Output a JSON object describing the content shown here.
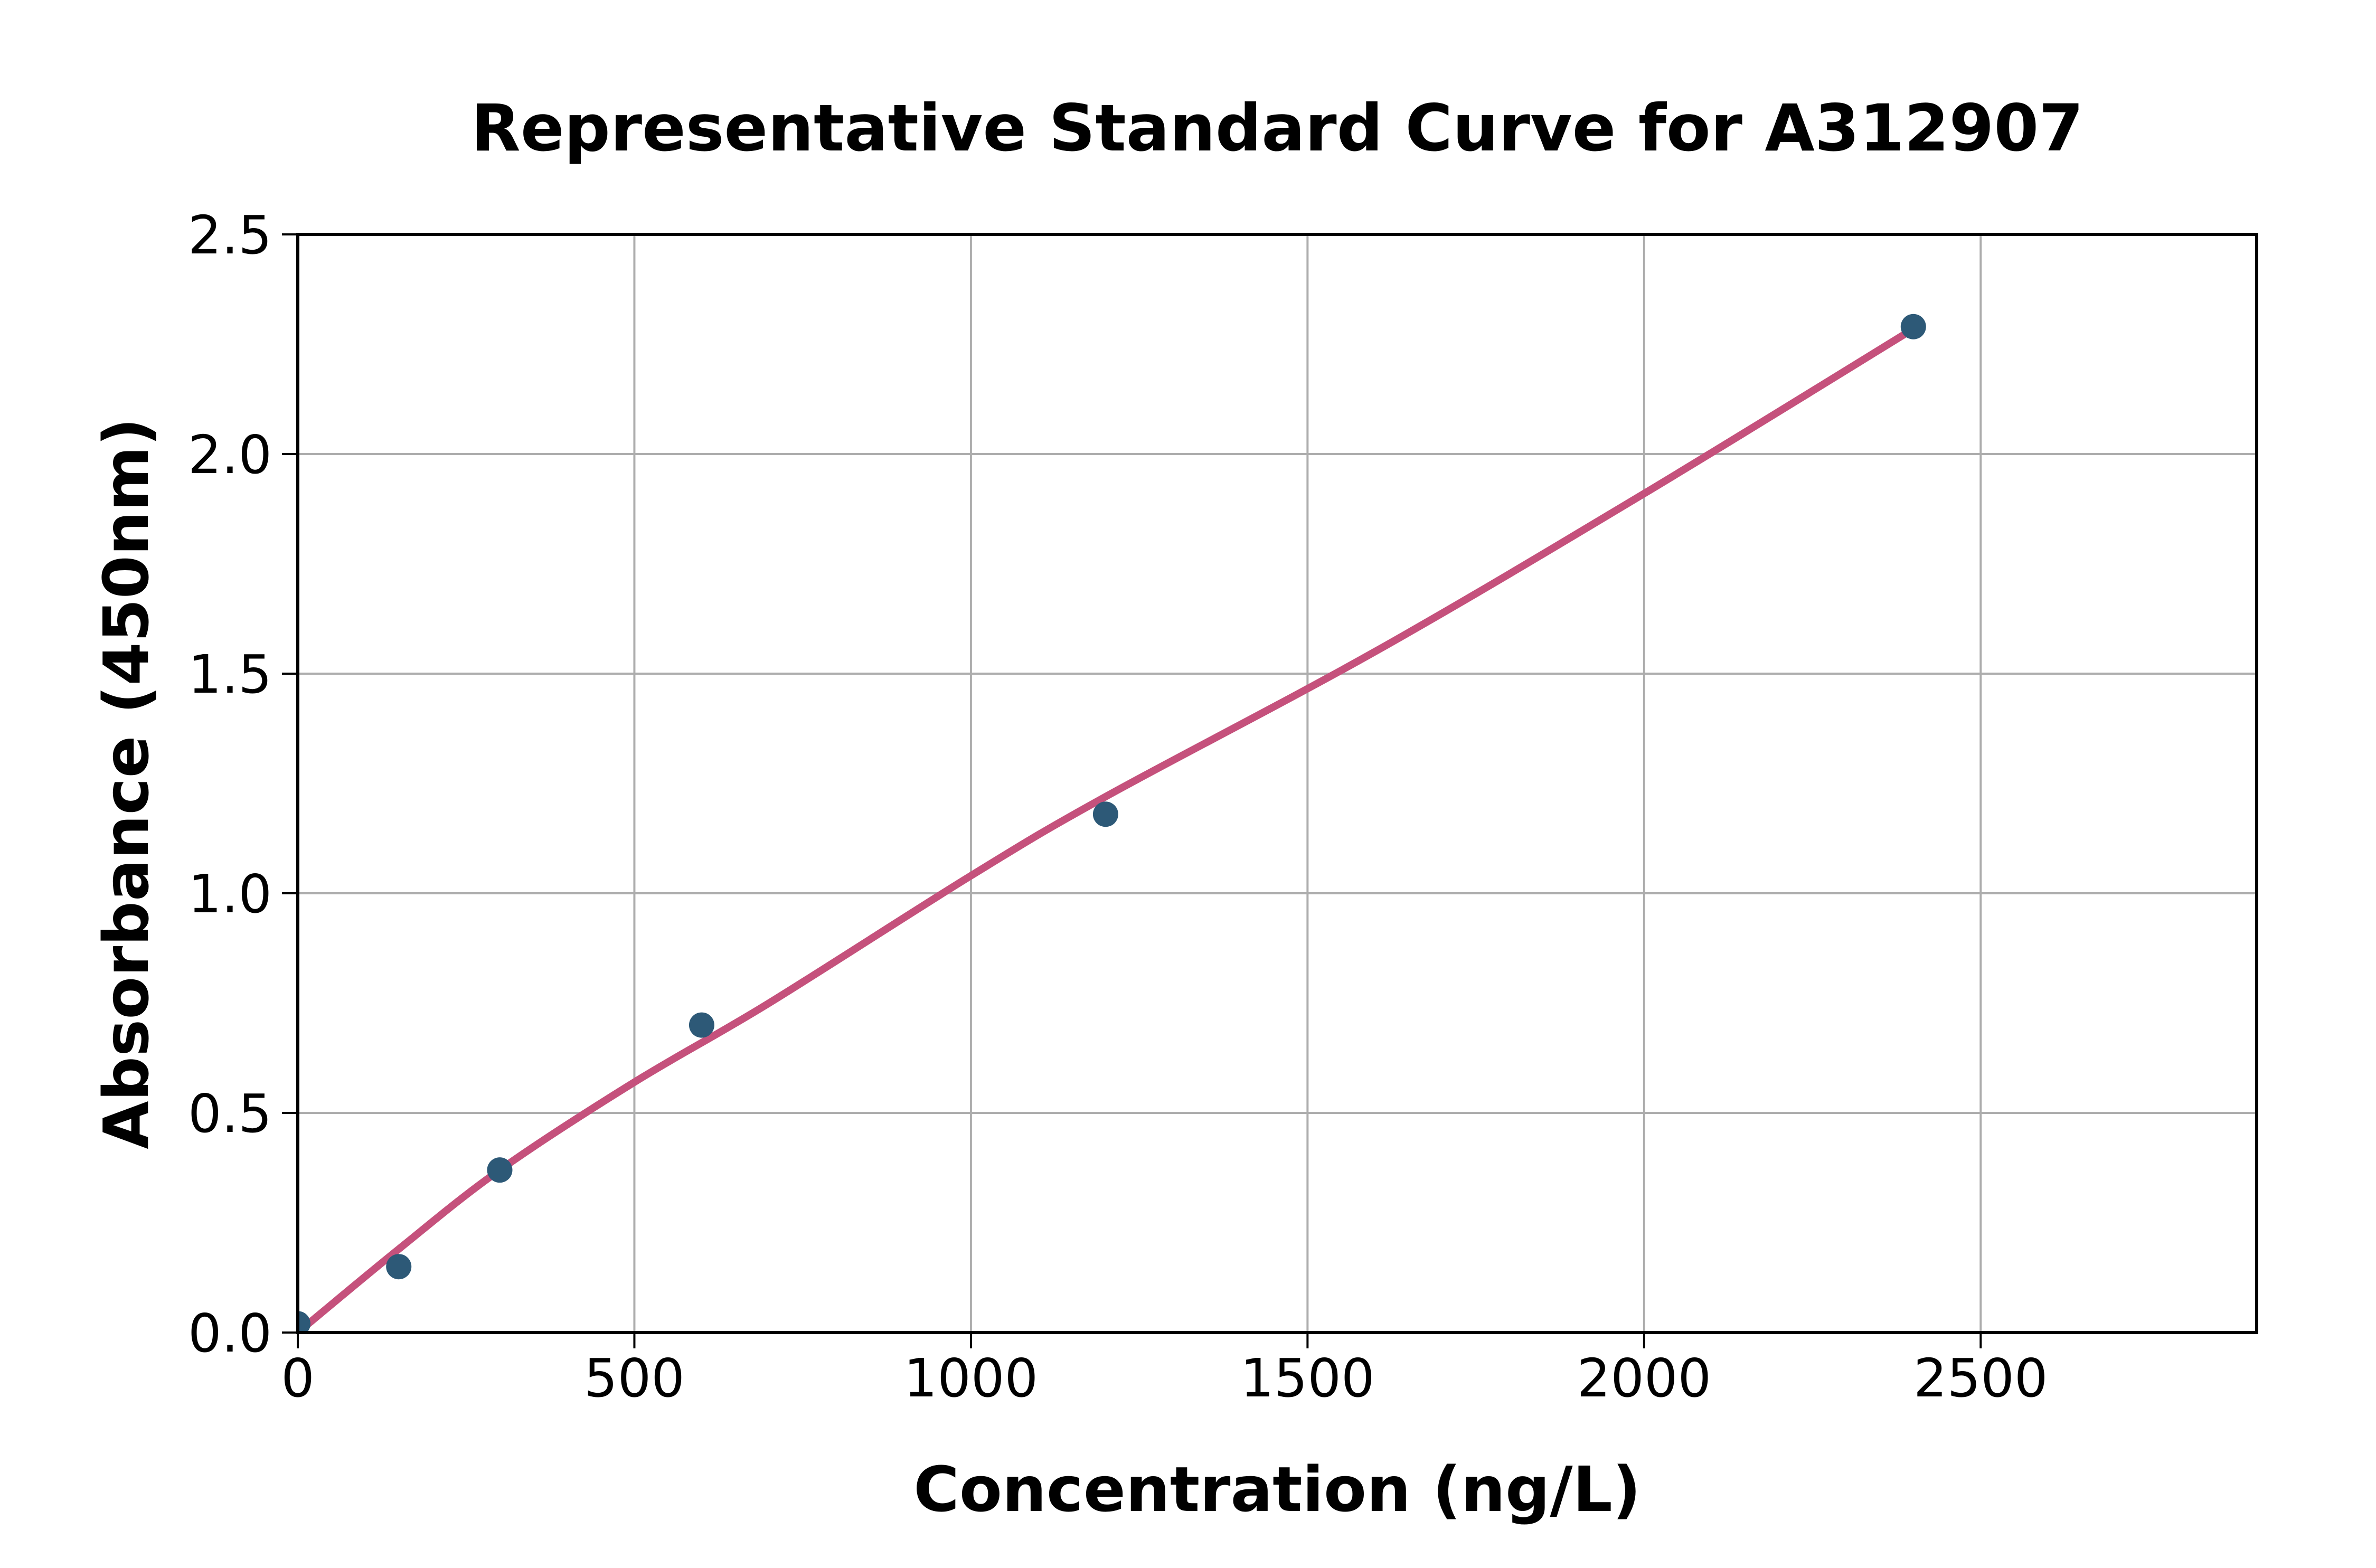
{
  "chart_data": {
    "type": "scatter",
    "title": "Representative Standard Curve for A312907",
    "xlabel": "Concentration (ng/L)",
    "ylabel": "Absorbance (450nm)",
    "xlim": [
      0,
      2910
    ],
    "ylim": [
      0,
      2.5
    ],
    "xticks": [
      0,
      500,
      1000,
      1500,
      2000,
      2500
    ],
    "xtick_labels": [
      "0",
      "500",
      "1000",
      "1500",
      "2000",
      "2500"
    ],
    "yticks": [
      0.0,
      0.5,
      1.0,
      1.5,
      2.0,
      2.5
    ],
    "ytick_labels": [
      "0.0",
      "0.5",
      "1.0",
      "1.5",
      "2.0",
      "2.5"
    ],
    "grid": true,
    "legend": "none",
    "series": [
      {
        "name": "standards",
        "style": "scatter",
        "points": [
          [
            0,
            0.02
          ],
          [
            150,
            0.15
          ],
          [
            300,
            0.37
          ],
          [
            600,
            0.7
          ],
          [
            1200,
            1.18
          ],
          [
            2400,
            2.29
          ]
        ]
      },
      {
        "name": "fitted-curve",
        "style": "line",
        "points": [
          [
            0,
            0.0
          ],
          [
            150,
            0.19
          ],
          [
            300,
            0.37
          ],
          [
            500,
            0.57
          ],
          [
            700,
            0.75
          ],
          [
            1000,
            1.04
          ],
          [
            1200,
            1.22
          ],
          [
            1600,
            1.55
          ],
          [
            2000,
            1.91
          ],
          [
            2400,
            2.285
          ]
        ]
      }
    ],
    "colors": {
      "point": "#2d5977",
      "line": "#c5517c",
      "grid": "#adadad",
      "axis": "#000000",
      "background": "#ffffff"
    }
  }
}
